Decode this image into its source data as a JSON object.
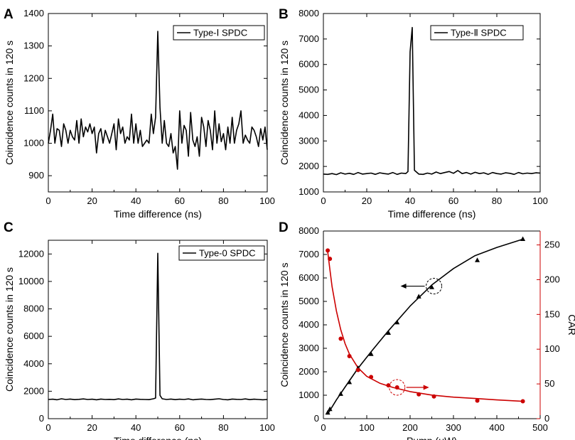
{
  "figure": {
    "colors": {
      "black": "#000000",
      "red": "#cc0000"
    }
  },
  "chart_data": [
    {
      "panel": "A",
      "type": "line",
      "legend": "Type-Ⅰ SPDC",
      "legend_position": "top-right",
      "xlabel": "Time difference (ns)",
      "ylabel": "Coincidence counts in 120 s",
      "xlim": [
        0,
        100
      ],
      "ylim": [
        850,
        1400
      ],
      "xticks": [
        0,
        20,
        40,
        60,
        80,
        100
      ],
      "yticks": [
        900,
        1000,
        1100,
        1200,
        1300,
        1400
      ],
      "x": [
        0,
        1,
        2,
        3,
        4,
        5,
        6,
        7,
        8,
        9,
        10,
        11,
        12,
        13,
        14,
        15,
        16,
        17,
        18,
        19,
        20,
        21,
        22,
        23,
        24,
        25,
        26,
        27,
        28,
        29,
        30,
        31,
        32,
        33,
        34,
        35,
        36,
        37,
        38,
        39,
        40,
        41,
        42,
        43,
        44,
        45,
        46,
        47,
        48,
        49,
        50,
        51,
        52,
        53,
        54,
        55,
        56,
        57,
        58,
        59,
        60,
        61,
        62,
        63,
        64,
        65,
        66,
        67,
        68,
        69,
        70,
        71,
        72,
        73,
        74,
        75,
        76,
        77,
        78,
        79,
        80,
        81,
        82,
        83,
        84,
        85,
        86,
        87,
        88,
        89,
        90,
        91,
        92,
        93,
        94,
        95,
        96,
        97,
        98,
        99,
        100
      ],
      "values": [
        1000,
        1040,
        1090,
        1000,
        1045,
        1040,
        990,
        1060,
        1040,
        1000,
        1040,
        1020,
        1010,
        1070,
        1000,
        1075,
        1020,
        1050,
        1035,
        1060,
        1030,
        1050,
        970,
        1030,
        1045,
        1000,
        1040,
        1020,
        1000,
        1030,
        1060,
        980,
        1075,
        1030,
        1050,
        1000,
        1020,
        1010,
        1090,
        1000,
        1060,
        1000,
        1040,
        990,
        1000,
        1010,
        1000,
        1090,
        1030,
        1080,
        1345,
        1110,
        1000,
        1070,
        1000,
        990,
        1030,
        970,
        990,
        920,
        1100,
        1000,
        1055,
        1040,
        960,
        1095,
        1010,
        990,
        1020,
        960,
        1080,
        1050,
        990,
        1070,
        1040,
        980,
        1100,
        1000,
        1060,
        1005,
        1030,
        980,
        1050,
        1000,
        1080,
        1000,
        1040,
        1060,
        1100,
        1000,
        1025,
        1010,
        1000,
        1050,
        1040,
        1020,
        990,
        1045,
        1010,
        1050,
        980
      ]
    },
    {
      "panel": "B",
      "type": "line",
      "legend": "Type-Ⅱ SPDC",
      "legend_position": "top-right",
      "xlabel": "Time difference (ns)",
      "ylabel": "Coincidence counts in 120 s",
      "xlim": [
        0,
        100
      ],
      "ylim": [
        1000,
        8000
      ],
      "xticks": [
        0,
        20,
        40,
        60,
        80,
        100
      ],
      "yticks": [
        1000,
        2000,
        3000,
        4000,
        5000,
        6000,
        7000,
        8000
      ],
      "x": [
        0,
        2,
        4,
        6,
        8,
        10,
        12,
        14,
        16,
        18,
        20,
        22,
        24,
        26,
        28,
        30,
        32,
        34,
        36,
        38,
        39,
        40,
        41,
        42,
        44,
        46,
        48,
        50,
        52,
        54,
        56,
        58,
        60,
        62,
        64,
        66,
        68,
        70,
        72,
        74,
        76,
        78,
        80,
        82,
        84,
        86,
        88,
        90,
        92,
        94,
        96,
        98,
        100
      ],
      "values": [
        1700,
        1690,
        1720,
        1680,
        1750,
        1700,
        1730,
        1690,
        1760,
        1700,
        1720,
        1740,
        1690,
        1750,
        1720,
        1700,
        1760,
        1690,
        1740,
        1720,
        1800,
        6500,
        7450,
        1850,
        1700,
        1690,
        1740,
        1700,
        1780,
        1720,
        1760,
        1800,
        1730,
        1840,
        1720,
        1760,
        1700,
        1770,
        1720,
        1750,
        1690,
        1760,
        1720,
        1700,
        1750,
        1730,
        1690,
        1760,
        1710,
        1740,
        1720,
        1750,
        1740
      ]
    },
    {
      "panel": "C",
      "type": "line",
      "legend": "Type-0 SPDC",
      "legend_position": "top-right",
      "xlabel": "Time difference (ns)",
      "ylabel": "Coincidence counts in 120 s",
      "xlim": [
        0,
        100
      ],
      "ylim": [
        0,
        13000
      ],
      "xticks": [
        0,
        20,
        40,
        60,
        80,
        100
      ],
      "yticks": [
        0,
        2000,
        4000,
        6000,
        8000,
        10000,
        12000
      ],
      "x": [
        0,
        2,
        4,
        6,
        8,
        10,
        12,
        14,
        16,
        18,
        20,
        22,
        24,
        26,
        28,
        30,
        32,
        34,
        36,
        38,
        40,
        42,
        44,
        46,
        48,
        49,
        50,
        51,
        52,
        54,
        56,
        58,
        60,
        62,
        64,
        66,
        68,
        70,
        72,
        74,
        76,
        78,
        80,
        82,
        84,
        86,
        88,
        90,
        92,
        94,
        96,
        98,
        100
      ],
      "values": [
        1400,
        1420,
        1380,
        1450,
        1400,
        1430,
        1390,
        1410,
        1440,
        1400,
        1420,
        1380,
        1430,
        1400,
        1410,
        1390,
        1440,
        1400,
        1420,
        1380,
        1430,
        1410,
        1400,
        1390,
        1450,
        1500,
        12050,
        1700,
        1450,
        1400,
        1430,
        1390,
        1420,
        1400,
        1440,
        1380,
        1410,
        1430,
        1400,
        1390,
        1420,
        1450,
        1400,
        1380,
        1430,
        1410,
        1400,
        1440,
        1390,
        1420,
        1400,
        1380,
        1400
      ]
    },
    {
      "panel": "D",
      "type": "scatter",
      "xlabel": "Pump (μW)",
      "ylabel": "Coincidence counts in 120 s",
      "y2label": "CAR",
      "xlim": [
        0,
        500
      ],
      "ylim": [
        0,
        8000
      ],
      "y2lim": [
        0,
        270
      ],
      "xticks": [
        0,
        100,
        200,
        300,
        400,
        500
      ],
      "yticks": [
        0,
        1000,
        2000,
        3000,
        4000,
        5000,
        6000,
        7000,
        8000
      ],
      "y2ticks": [
        0,
        50,
        100,
        150,
        200,
        250
      ],
      "series": [
        {
          "name": "Coincidence counts",
          "axis": "left",
          "marker": "triangle",
          "color": "#000000",
          "x": [
            10,
            15,
            40,
            60,
            80,
            110,
            150,
            170,
            220,
            250,
            355,
            460
          ],
          "values": [
            250,
            400,
            1050,
            1550,
            2150,
            2750,
            3650,
            4100,
            5200,
            5600,
            6750,
            7650
          ]
        },
        {
          "name": "CAR",
          "axis": "right",
          "marker": "circle",
          "color": "#cc0000",
          "x": [
            10,
            15,
            40,
            60,
            80,
            110,
            150,
            170,
            220,
            255,
            355,
            460
          ],
          "values": [
            242,
            230,
            115,
            90,
            70,
            60,
            48,
            45,
            35,
            32,
            26,
            25
          ]
        }
      ],
      "fits": [
        {
          "axis": "left",
          "color": "#000000",
          "x": [
            10,
            30,
            50,
            80,
            110,
            150,
            200,
            250,
            300,
            350,
            400,
            460
          ],
          "values": [
            200,
            800,
            1350,
            2150,
            2850,
            3750,
            4800,
            5700,
            6400,
            6950,
            7300,
            7650
          ]
        },
        {
          "axis": "right",
          "color": "#cc0000",
          "x": [
            10,
            15,
            20,
            30,
            40,
            50,
            60,
            80,
            100,
            130,
            160,
            200,
            250,
            300,
            350,
            400,
            460
          ],
          "values": [
            240,
            215,
            190,
            155,
            128,
            108,
            93,
            73,
            61,
            51,
            45,
            39,
            34,
            31,
            29,
            27,
            25
          ]
        }
      ],
      "annotations": [
        "dashed circle with left arrow on black curve → left axis",
        "dashed circle with right arrow on red curve → right axis"
      ]
    }
  ]
}
